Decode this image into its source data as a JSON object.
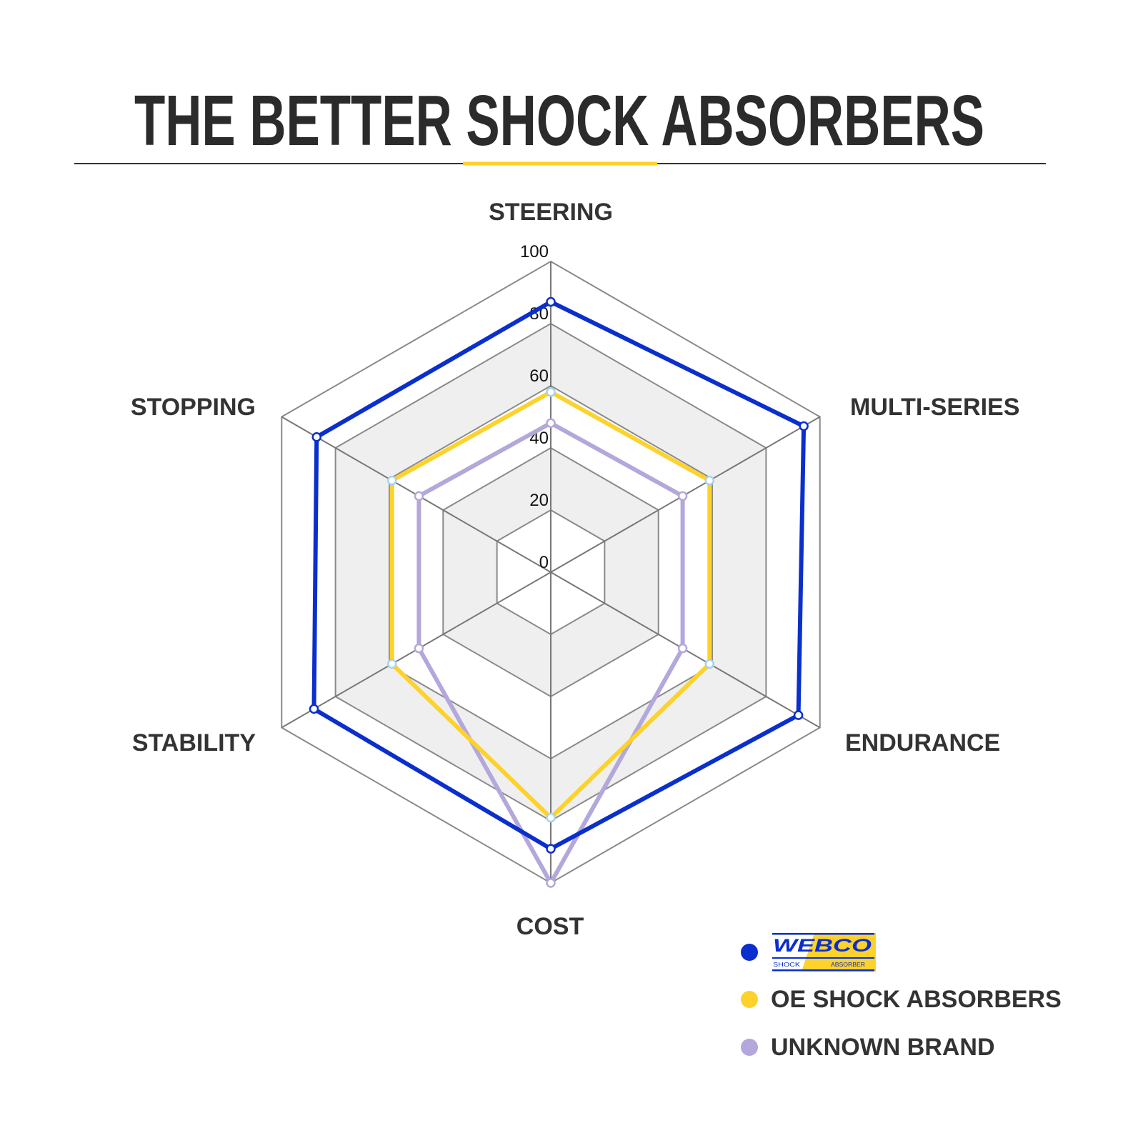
{
  "chart_data": {
    "type": "radar",
    "title": "THE BETTER SHOCK ABSORBERS",
    "axes": [
      "STEERING",
      "MULTI-SERIES",
      "ENDURANCE",
      "COST",
      "STABILITY",
      "STOPPING"
    ],
    "ticks": [
      "0",
      "20",
      "40",
      "60",
      "80",
      "100"
    ],
    "range": [
      0,
      100
    ],
    "grid": true,
    "legend_position": "bottom-right",
    "series": [
      {
        "name": "WEBCO SHOCK ABSORBER",
        "color": "#0a2fcc",
        "marker_color": "#0a2fcc",
        "values": [
          87,
          94,
          92,
          89,
          88,
          87
        ]
      },
      {
        "name": "OE SHOCK ABSORBERS",
        "color": "#fdd22a",
        "marker_color": "#a8d2ee",
        "values": [
          58,
          59,
          59,
          79,
          59,
          59
        ]
      },
      {
        "name": "UNKNOWN BRAND",
        "color": "#b3a7db",
        "marker_color": "#b3a7db",
        "values": [
          48,
          49,
          49,
          100,
          49,
          49
        ]
      }
    ]
  },
  "legend": {
    "logo": {
      "word": "WEBCO",
      "tag_left": "SHOCK",
      "tag_right": "ABSORBER"
    },
    "oe_label": "OE SHOCK ABSORBERS",
    "unknown_label": "UNKNOWN BRAND"
  },
  "colors": {
    "accent": "#fdd22a",
    "title": "#2b2b2b",
    "rule": "#333333",
    "band": "#efefef",
    "grid": "#8a8a8a"
  }
}
